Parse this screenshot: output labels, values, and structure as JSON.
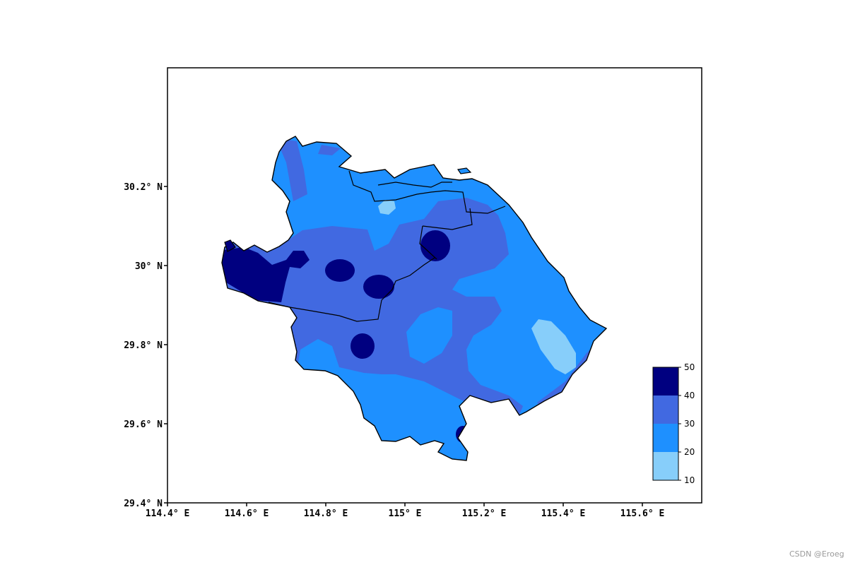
{
  "chart_data": {
    "type": "heatmap",
    "subtype": "filled-contour-map",
    "x_axis": {
      "ticks": [
        114.4,
        114.6,
        114.8,
        115.0,
        115.2,
        115.4,
        115.6
      ],
      "tick_labels": [
        "114.4° E",
        "114.6° E",
        "114.8° E",
        "115° E",
        "115.2° E",
        "115.4° E",
        "115.6° E"
      ],
      "range": [
        114.4,
        115.75
      ]
    },
    "y_axis": {
      "ticks": [
        29.4,
        29.6,
        29.8,
        30.0,
        30.2
      ],
      "tick_labels": [
        "29.4° N",
        "29.6° N",
        "29.8° N",
        "30° N",
        "30.2° N"
      ],
      "range": [
        29.4,
        30.5
      ]
    },
    "levels": [
      10,
      20,
      30,
      40,
      50
    ],
    "level_labels": [
      "10",
      "20",
      "30",
      "40",
      "50"
    ],
    "level_colors": [
      "#87CEFA",
      "#1E90FF",
      "#4169E1",
      "#000080"
    ],
    "colorbar_position": "bottom-right, inside axes",
    "grid": false
  },
  "watermark": "CSDN @Eroeg"
}
